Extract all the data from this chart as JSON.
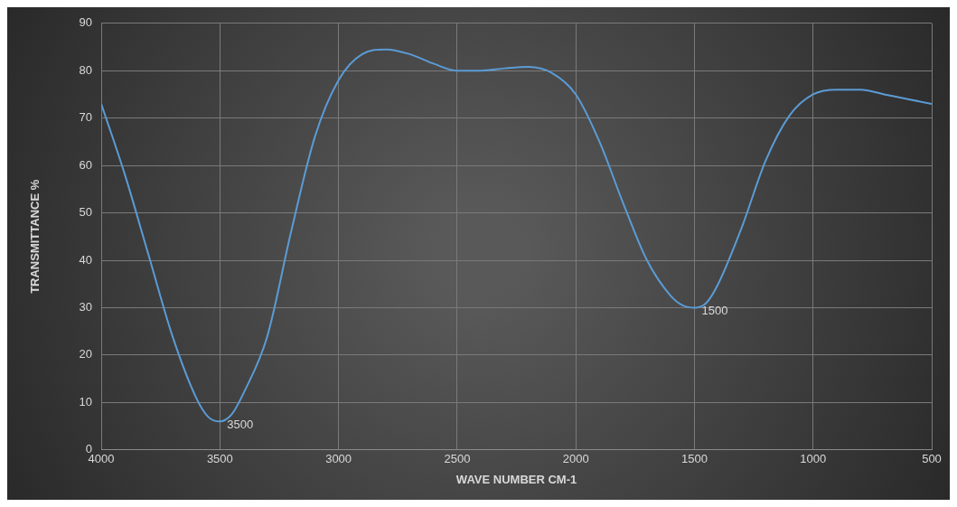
{
  "chart_data": {
    "type": "line",
    "xlabel": "WAVE NUMBER CM-1",
    "ylabel": "TRANSMITTANCE %",
    "x": [
      4000,
      3900,
      3800,
      3700,
      3600,
      3550,
      3500,
      3450,
      3400,
      3300,
      3200,
      3100,
      3000,
      2900,
      2800,
      2700,
      2600,
      2500,
      2400,
      2300,
      2200,
      2100,
      2000,
      1900,
      1800,
      1700,
      1600,
      1550,
      1500,
      1450,
      1400,
      1300,
      1200,
      1100,
      1000,
      900,
      800,
      700,
      600,
      500
    ],
    "series": [
      {
        "color": "#5b9bd5",
        "values": [
          73,
          58,
          41,
          24,
          11,
          7,
          6,
          7.5,
          12,
          24,
          46,
          66,
          78,
          83.5,
          84.5,
          83.5,
          81.5,
          80,
          80,
          80.5,
          80.8,
          79.5,
          75,
          65,
          52,
          40,
          32.5,
          30.5,
          30,
          31,
          35,
          47,
          61,
          70.5,
          75,
          76,
          76,
          75,
          74,
          73
        ]
      }
    ],
    "xlim": [
      4000,
      500
    ],
    "xticks": [
      4000,
      3500,
      3000,
      2500,
      2000,
      1500,
      1000,
      500
    ],
    "ylim": [
      0,
      90
    ],
    "yticks": [
      0,
      10,
      20,
      30,
      40,
      50,
      60,
      70,
      80,
      90
    ],
    "grid": true,
    "legend": false,
    "marker": "none",
    "line_style": "solid",
    "annotations": [
      {
        "text": "3500",
        "x": 3500,
        "y": 6
      },
      {
        "text": "1500",
        "x": 1500,
        "y": 30
      }
    ]
  }
}
